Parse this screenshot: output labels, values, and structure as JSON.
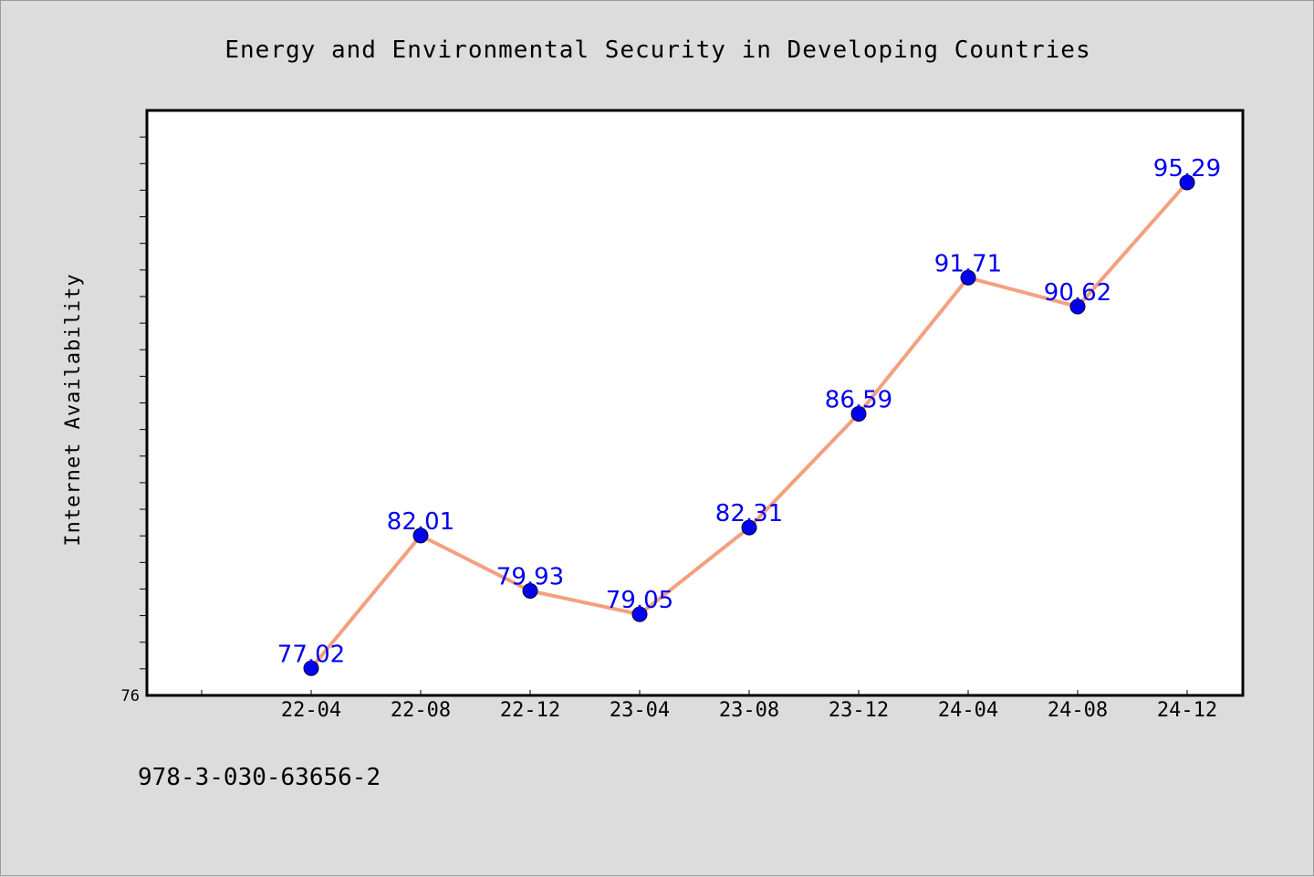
{
  "chart_data": {
    "type": "line",
    "title": "Energy and Environmental Security in Developing Countries",
    "xlabel": "",
    "ylabel": "Internet Availability",
    "categories": [
      "22-04",
      "22-08",
      "22-12",
      "23-04",
      "23-08",
      "23-12",
      "24-04",
      "24-08",
      "24-12"
    ],
    "series": [
      {
        "values": [
          77.02,
          82.01,
          79.93,
          79.05,
          82.31,
          86.59,
          91.71,
          90.62,
          95.29
        ],
        "labels": [
          "77.02",
          "82.01",
          "79.93",
          "79.05",
          "82.31",
          "86.59",
          "91.71",
          "90.62",
          "95.29"
        ]
      }
    ],
    "ylim": [
      76,
      98
    ],
    "y_tick_labels": [
      "76"
    ],
    "grid": false,
    "legend": "none",
    "colors": {
      "line": "#f4a07e",
      "marker": "#0000ee",
      "label": "#0000ee",
      "background": "#dcdcdc",
      "plot_background": "#ffffff"
    }
  },
  "footer": {
    "isbn": "978-3-030-63656-2"
  }
}
